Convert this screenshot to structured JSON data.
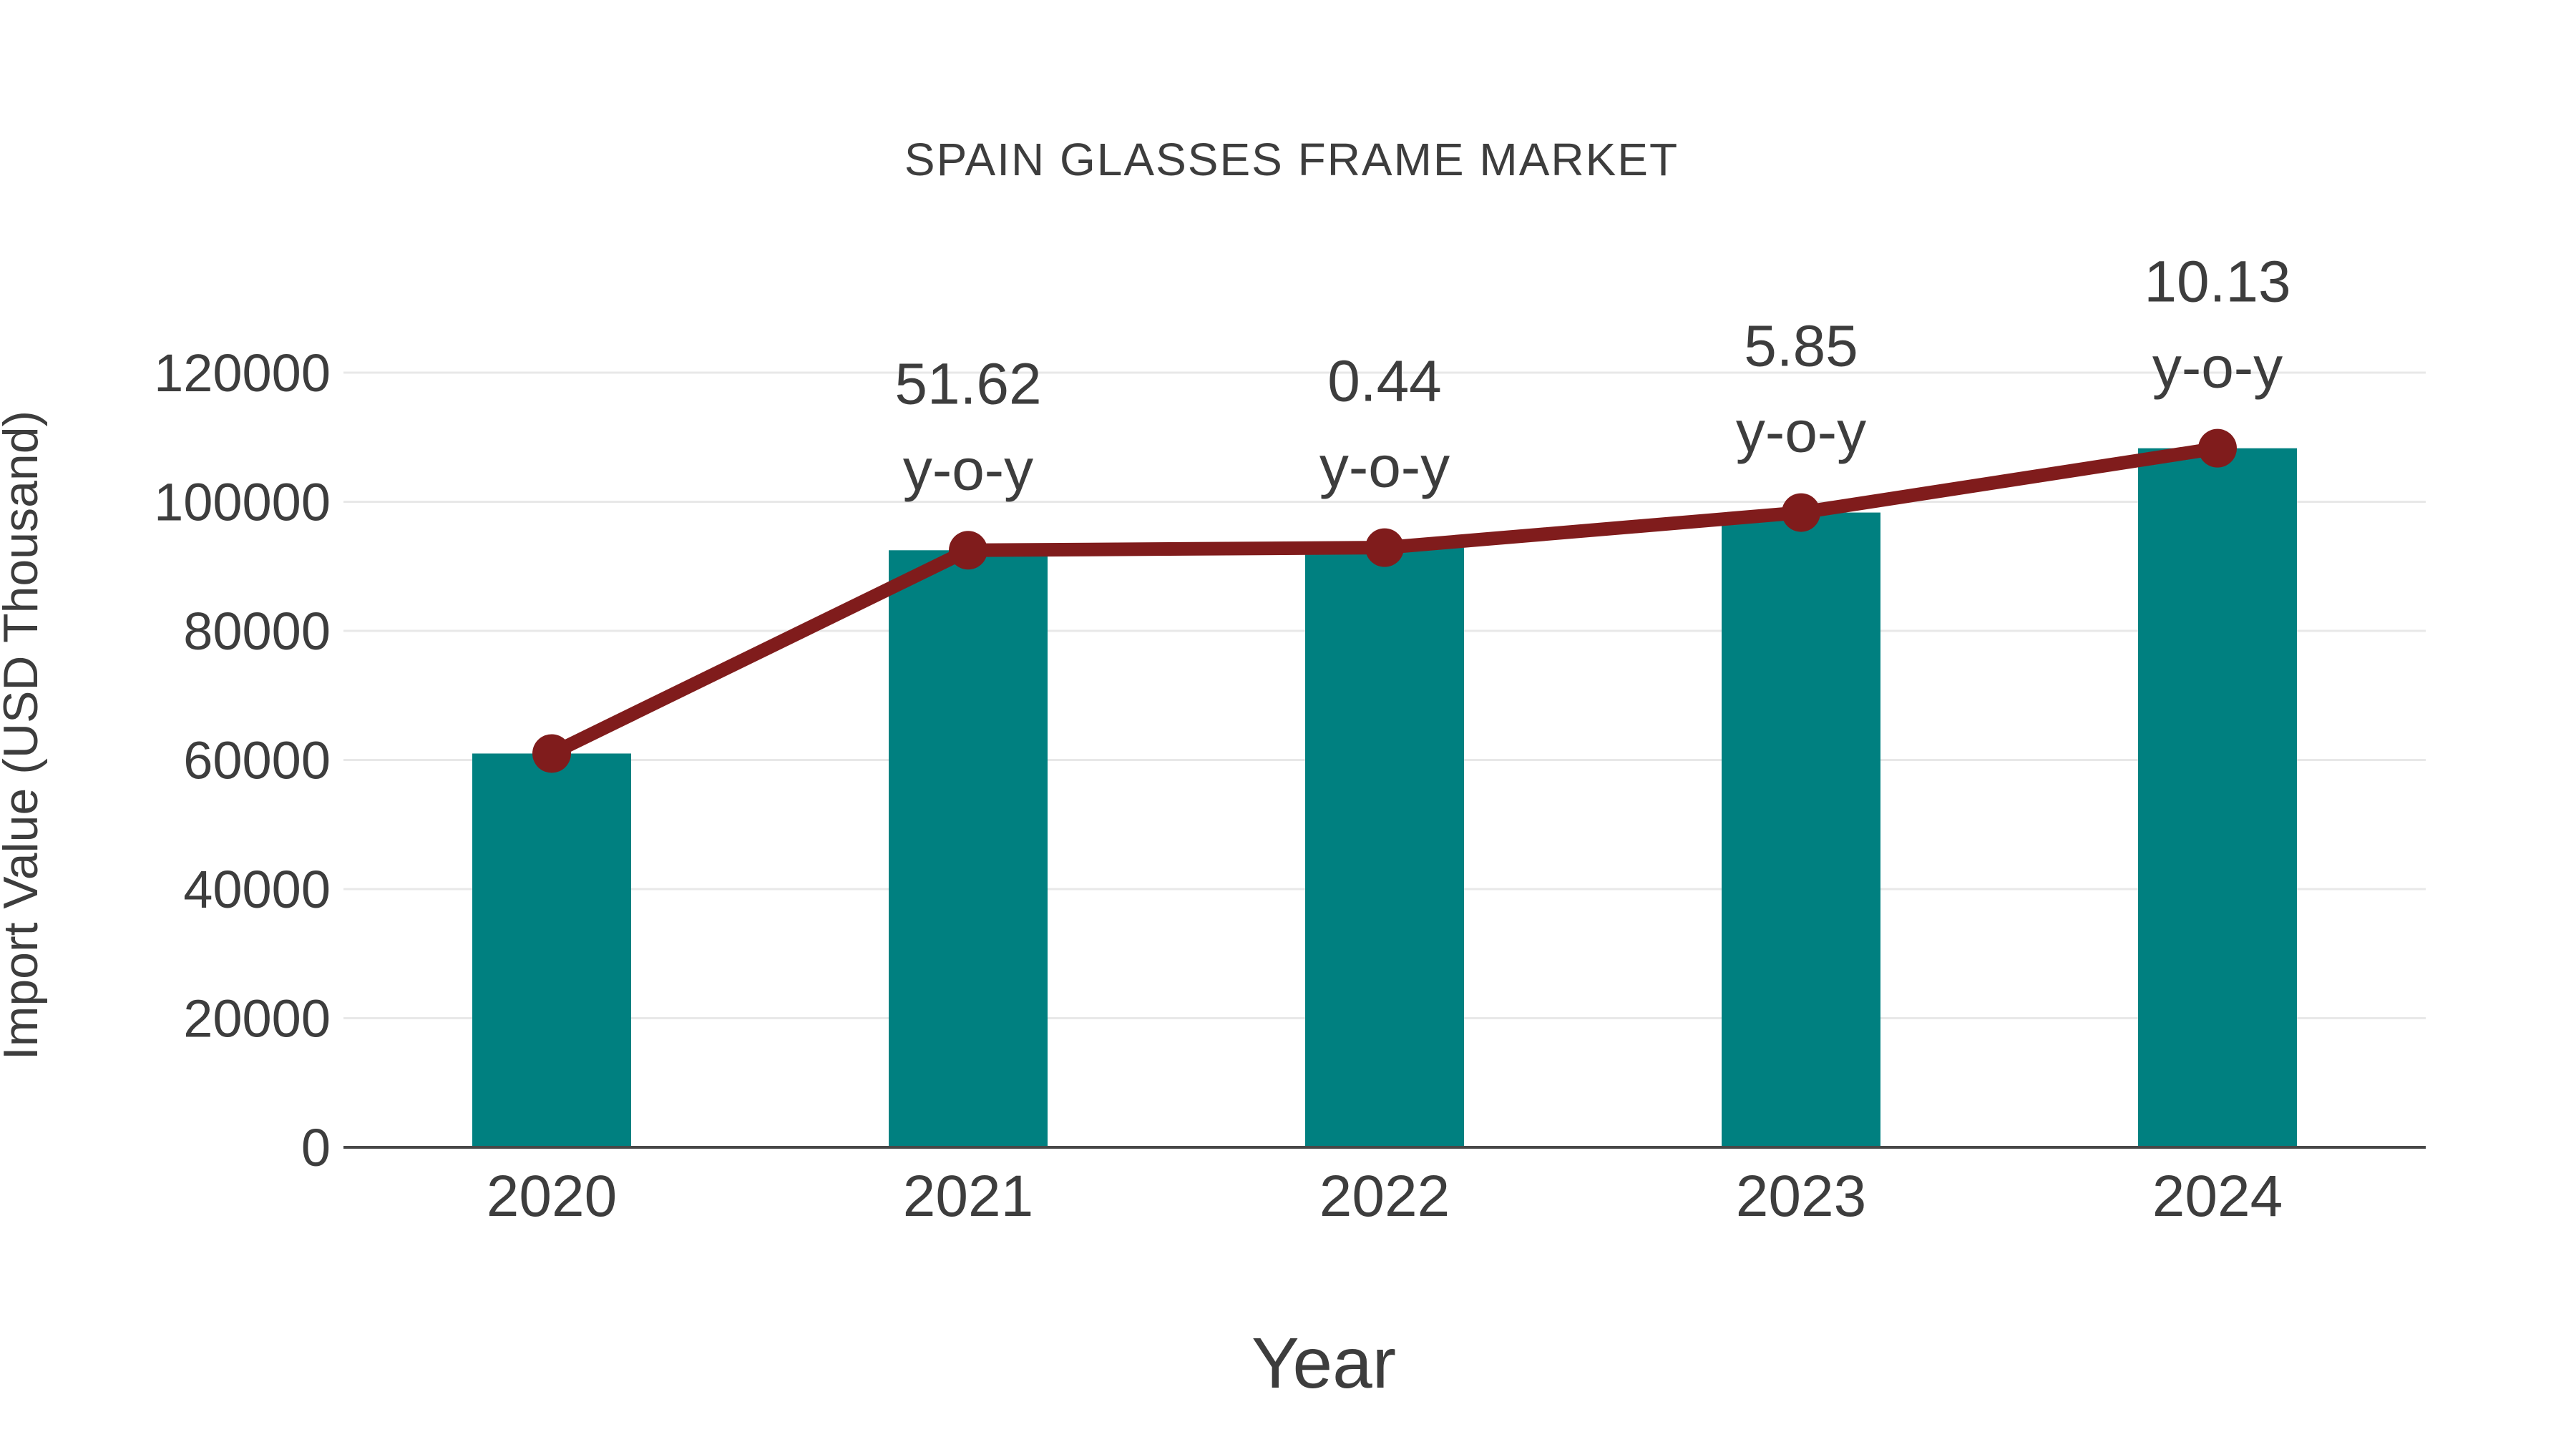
{
  "title": "SPAIN GLASSES FRAME MARKET",
  "colors": {
    "bar": "#008080",
    "line": "#801c1c",
    "marker": "#801c1c",
    "grid": "#e8e8e8",
    "axis_line": "#474747",
    "text": "#3d3d3d"
  },
  "chart_data": {
    "type": "bar",
    "title": "SPAIN GLASSES FRAME MARKET",
    "xlabel": "Year",
    "ylabel": "Import Value (USD Thousand)",
    "categories": [
      "2020",
      "2021",
      "2022",
      "2023",
      "2024"
    ],
    "series": [
      {
        "name": "Import Value bars",
        "type": "bar",
        "values": [
          61000,
          92488,
          92895,
          98330,
          108290
        ]
      },
      {
        "name": "Import Value trend",
        "type": "line",
        "values": [
          61000,
          92488,
          92895,
          98330,
          108290
        ]
      }
    ],
    "annotations": [
      {
        "category": "2021",
        "line1": "51.62",
        "line2": "y-o-y"
      },
      {
        "category": "2022",
        "line1": "0.44",
        "line2": "y-o-y"
      },
      {
        "category": "2023",
        "line1": "5.85",
        "line2": "y-o-y"
      },
      {
        "category": "2024",
        "line1": "10.13",
        "line2": "y-o-y"
      }
    ],
    "ylim": [
      0,
      120000
    ],
    "yticks": [
      0,
      20000,
      40000,
      60000,
      80000,
      100000,
      120000
    ],
    "grid": "horizontal",
    "legend_position": "none"
  }
}
